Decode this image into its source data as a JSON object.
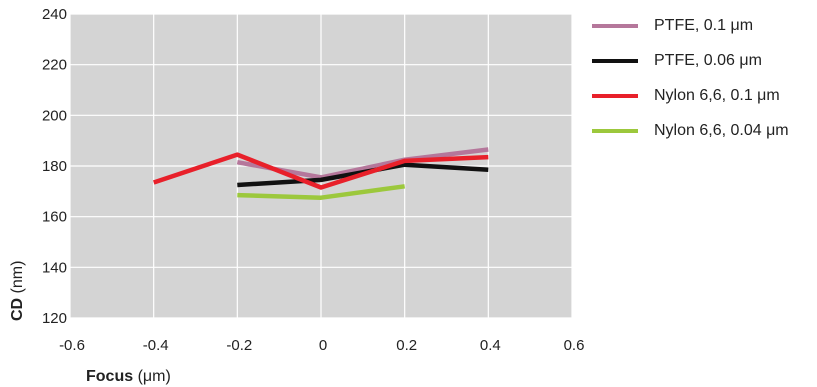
{
  "chart_data": {
    "type": "line",
    "xlabel": {
      "bold": "Focus",
      "rest": " (μm)"
    },
    "ylabel": {
      "bold": "CD",
      "rest": " (nm)"
    },
    "xlim": [
      -0.6,
      0.6
    ],
    "ylim": [
      120,
      240
    ],
    "xticks": [
      "-0.6",
      "-0.4",
      "-0.2",
      "0",
      "0.2",
      "0.4",
      "0.6"
    ],
    "yticks": [
      "120",
      "140",
      "160",
      "180",
      "200",
      "220",
      "240"
    ],
    "grid": true,
    "legend_position": "right",
    "plot_background": "#d4d4d4",
    "series": [
      {
        "name": "PTFE, 0.1 μm",
        "color": "#b5779b",
        "points": [
          [
            -0.2,
            181.5
          ],
          [
            0,
            175.5
          ],
          [
            0.2,
            182.5
          ],
          [
            0.4,
            186.5
          ]
        ]
      },
      {
        "name": "PTFE, 0.06 μm",
        "color": "#111111",
        "points": [
          [
            -0.2,
            172.5
          ],
          [
            0,
            174.5
          ],
          [
            0.2,
            180.5
          ],
          [
            0.4,
            178.5
          ]
        ]
      },
      {
        "name": "Nylon 6,6, 0.1 μm",
        "color": "#e8202a",
        "points": [
          [
            -0.4,
            173.5
          ],
          [
            -0.2,
            184.5
          ],
          [
            0,
            171.5
          ],
          [
            0.2,
            182
          ],
          [
            0.4,
            183.5
          ]
        ]
      },
      {
        "name": "Nylon 6,6, 0.04 μm",
        "color": "#9cc83c",
        "points": [
          [
            -0.2,
            168.5
          ],
          [
            0,
            167.5
          ],
          [
            0.2,
            172
          ]
        ]
      }
    ]
  }
}
